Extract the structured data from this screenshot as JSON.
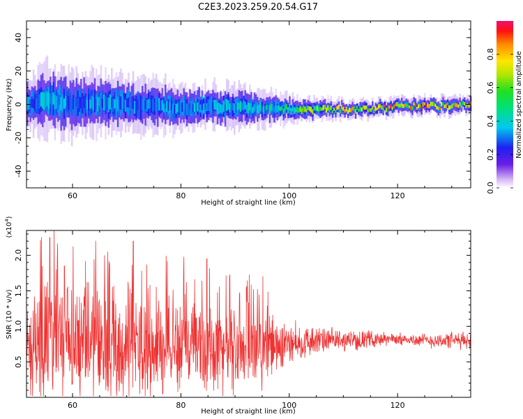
{
  "title": "C2E3.2023.259.20.54.G17",
  "chart_data": [
    {
      "type": "heatmap",
      "name": "spectrogram",
      "xlabel": "Height of straight line (km)",
      "ylabel": "Frequency (Hz)",
      "xlim": [
        51.5,
        133.5
      ],
      "ylim": [
        -50,
        50
      ],
      "x_ticks": [
        60,
        80,
        100,
        120
      ],
      "y_ticks": [
        -40,
        -20,
        0,
        20,
        40
      ],
      "colorbar": {
        "label": "Normalized spectral amplitude",
        "range": [
          0,
          1
        ],
        "ticks": [
          0.0,
          0.2,
          0.4,
          0.6,
          0.8
        ],
        "colormap": "rainbow"
      },
      "ridge": {
        "x": [
          52,
          55,
          60,
          65,
          70,
          75,
          80,
          85,
          90,
          95,
          100,
          105,
          110,
          115,
          120,
          125,
          130,
          133
        ],
        "center": [
          0,
          3,
          0,
          1,
          0,
          -1,
          -2,
          -1,
          -2,
          -2,
          -3,
          -3,
          -3,
          -3,
          -1,
          -1,
          -1,
          0
        ],
        "spread": [
          6,
          8,
          7,
          7,
          6,
          6,
          5,
          5,
          5,
          4,
          3,
          2.5,
          2,
          2,
          2,
          2,
          2,
          2
        ],
        "peak_amplitude": [
          0.35,
          0.4,
          0.35,
          0.4,
          0.35,
          0.35,
          0.4,
          0.4,
          0.45,
          0.45,
          0.6,
          0.75,
          0.8,
          0.85,
          0.9,
          0.9,
          0.85,
          0.8
        ]
      }
    },
    {
      "type": "line",
      "name": "snr",
      "xlabel": "Height of straight line (km)",
      "ylabel": "SNR (10 * v/v)",
      "y_multiplier_label": "(x10",
      "y_multiplier_exp": "4",
      "xlim": [
        51.5,
        133.5
      ],
      "ylim": [
        0,
        2.35
      ],
      "x_ticks": [
        60,
        80,
        100,
        120
      ],
      "y_ticks": [
        0.5,
        1.0,
        1.5,
        2.0
      ],
      "y_tick_labels": [
        "0.5",
        "1.0",
        "1.5",
        "2.0"
      ],
      "series_color": "#ee3333",
      "envelope": {
        "x": [
          51.5,
          55,
          60,
          65,
          70,
          75,
          80,
          85,
          90,
          95,
          100,
          105,
          110,
          115,
          120,
          125,
          130,
          133.5
        ],
        "mean": [
          0.7,
          0.8,
          0.75,
          0.75,
          0.7,
          0.72,
          0.72,
          0.7,
          0.7,
          0.72,
          0.75,
          0.8,
          0.8,
          0.82,
          0.82,
          0.8,
          0.8,
          0.8
        ],
        "amplitude": [
          0.6,
          0.9,
          0.8,
          0.8,
          0.75,
          0.7,
          0.7,
          0.65,
          0.6,
          0.55,
          0.3,
          0.2,
          0.15,
          0.12,
          0.08,
          0.1,
          0.12,
          0.12
        ]
      },
      "spikes": [
        {
          "x": 55.8,
          "y": 2.25
        },
        {
          "x": 56.6,
          "y": 2.35
        },
        {
          "x": 66.5,
          "y": 2.05
        },
        {
          "x": 71.2,
          "y": 2.2
        },
        {
          "x": 58.5,
          "y": 1.85
        },
        {
          "x": 77.5,
          "y": 1.92
        },
        {
          "x": 84.8,
          "y": 1.95
        },
        {
          "x": 80.5,
          "y": 1.7
        },
        {
          "x": 89.0,
          "y": 1.7
        }
      ]
    }
  ]
}
